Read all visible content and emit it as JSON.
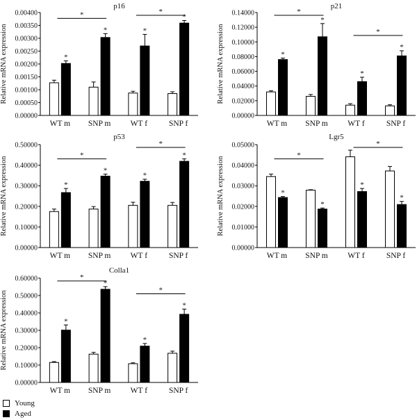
{
  "legend": {
    "young_label": "Young",
    "aged_label": "Aged"
  },
  "colors": {
    "young": "#ffffff",
    "aged": "#000000",
    "stroke": "#000000"
  },
  "chart_data": [
    {
      "type": "bar",
      "title": "p16",
      "ylabel": "Relative mRNA expression",
      "categories": [
        "WT m",
        "SNP m",
        "WT f",
        "SNP f"
      ],
      "ylim": [
        0,
        0.004
      ],
      "yticks": [
        "0.00000",
        "0.00050",
        "0.00100",
        "0.00150",
        "0.00200",
        "0.00250",
        "0.00300",
        "0.00350",
        "0.00400"
      ],
      "series": [
        {
          "name": "Young",
          "values": [
            0.00127,
            0.0011,
            0.00087,
            0.00085
          ],
          "errors": [
            0.0001,
            0.0002,
            7e-05,
            7e-05
          ]
        },
        {
          "name": "Aged",
          "values": [
            0.00202,
            0.00303,
            0.0027,
            0.00359
          ],
          "errors": [
            0.0001,
            0.00015,
            0.00045,
            0.0001
          ]
        }
      ],
      "sig_bars": [
        {
          "from": 0,
          "to": 1,
          "label": "*"
        },
        {
          "from": 2,
          "to": 3,
          "label": "*"
        }
      ],
      "aged_stars": [
        "*",
        "*",
        "*",
        "*"
      ]
    },
    {
      "type": "bar",
      "title": "p21",
      "ylabel": "Relative mRNA expression",
      "categories": [
        "WT m",
        "SNP m",
        "WT f",
        "SNP f"
      ],
      "ylim": [
        0,
        0.14
      ],
      "yticks": [
        "0.00000",
        "0.02000",
        "0.04000",
        "0.06000",
        "0.08000",
        "0.10000",
        "0.12000",
        "0.14000"
      ],
      "series": [
        {
          "name": "Young",
          "values": [
            0.032,
            0.026,
            0.014,
            0.013
          ],
          "errors": [
            0.0015,
            0.0025,
            0.002,
            0.0015
          ]
        },
        {
          "name": "Aged",
          "values": [
            0.076,
            0.107,
            0.046,
            0.081
          ],
          "errors": [
            0.002,
            0.018,
            0.006,
            0.007
          ]
        }
      ],
      "sig_bars": [
        {
          "from": 0,
          "to": 1,
          "label": "*"
        },
        {
          "from": 2,
          "to": 3,
          "label": "*"
        }
      ],
      "aged_stars": [
        "*",
        "*",
        "*",
        "*"
      ]
    },
    {
      "type": "bar",
      "title": "p53",
      "ylabel": "Relative mRNA expression",
      "categories": [
        "WT m",
        "SNP m",
        "WT f",
        "SNP f"
      ],
      "ylim": [
        0,
        0.5
      ],
      "yticks": [
        "0.00000",
        "0.10000",
        "0.20000",
        "0.30000",
        "0.40000",
        "0.50000"
      ],
      "series": [
        {
          "name": "Young",
          "values": [
            0.175,
            0.187,
            0.205,
            0.205
          ],
          "errors": [
            0.012,
            0.012,
            0.015,
            0.014
          ]
        },
        {
          "name": "Aged",
          "values": [
            0.267,
            0.347,
            0.322,
            0.419
          ],
          "errors": [
            0.02,
            0.01,
            0.01,
            0.012
          ]
        }
      ],
      "sig_bars": [
        {
          "from": 0,
          "to": 1,
          "label": "*"
        },
        {
          "from": 2,
          "to": 3,
          "label": "*"
        }
      ],
      "aged_stars": [
        "*",
        "*",
        "*",
        "*"
      ]
    },
    {
      "type": "bar",
      "title": "Lgr5",
      "ylabel": "Relative mRNA expression",
      "categories": [
        "WT m",
        "SNP m",
        "WT f",
        "SNP f"
      ],
      "ylim": [
        0,
        0.05
      ],
      "yticks": [
        "0.00000",
        "0.01000",
        "0.02000",
        "0.03000",
        "0.04000",
        "0.05000"
      ],
      "series": [
        {
          "name": "Young",
          "values": [
            0.0345,
            0.0279,
            0.0441,
            0.0372
          ],
          "errors": [
            0.0012,
            0.0002,
            0.0032,
            0.0022
          ]
        },
        {
          "name": "Aged",
          "values": [
            0.0243,
            0.0187,
            0.0272,
            0.0209
          ],
          "errors": [
            0.0005,
            0.0005,
            0.0015,
            0.0015
          ]
        }
      ],
      "sig_bars": [
        {
          "from": 0,
          "to": 1,
          "label": "*"
        },
        {
          "from": 2,
          "to": 3,
          "label": "*"
        }
      ],
      "aged_stars": [
        "*",
        "*",
        "*",
        "*"
      ]
    },
    {
      "type": "bar",
      "title": "Colla1",
      "ylabel": "Relative mRNA expression",
      "categories": [
        "WT m",
        "SNP m",
        "WT f",
        "SNP f"
      ],
      "ylim": [
        0,
        0.6
      ],
      "yticks": [
        "0.00000",
        "0.10000",
        "0.20000",
        "0.30000",
        "0.40000",
        "0.50000",
        "0.60000"
      ],
      "series": [
        {
          "name": "Young",
          "values": [
            0.115,
            0.163,
            0.108,
            0.168
          ],
          "errors": [
            0.005,
            0.01,
            0.005,
            0.012
          ]
        },
        {
          "name": "Aged",
          "values": [
            0.301,
            0.536,
            0.209,
            0.392
          ],
          "errors": [
            0.03,
            0.015,
            0.015,
            0.03
          ]
        }
      ],
      "sig_bars": [
        {
          "from": 0,
          "to": 1,
          "label": "*"
        },
        {
          "from": 2,
          "to": 3,
          "label": "*"
        }
      ],
      "aged_stars": [
        "*",
        "*",
        "*",
        "*"
      ]
    }
  ]
}
